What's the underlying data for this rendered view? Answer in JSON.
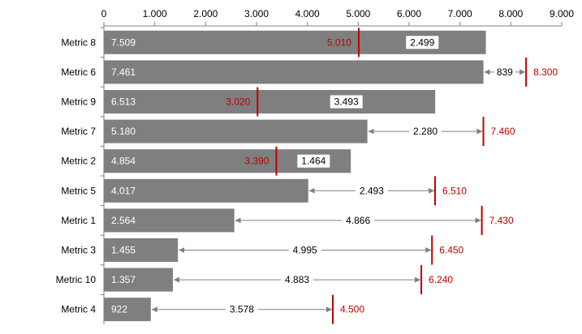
{
  "chart_data": {
    "type": "bar",
    "orientation": "horizontal",
    "categories": [
      "Metric 8",
      "Metric 6",
      "Metric 9",
      "Metric 7",
      "Metric 2",
      "Metric 5",
      "Metric 1",
      "Metric 3",
      "Metric 10",
      "Metric 4"
    ],
    "series": [
      {
        "values": [
          7509,
          7461,
          6513,
          5180,
          4854,
          4017,
          2564,
          1455,
          1357,
          922
        ],
        "labels": [
          "7.509",
          "7.461",
          "6.513",
          "5.180",
          "4.854",
          "4.017",
          "2.564",
          "1.455",
          "1.357",
          "922"
        ]
      },
      {
        "values": [
          5010,
          8300,
          3020,
          7460,
          3390,
          6510,
          7430,
          6450,
          6240,
          4500
        ],
        "labels": [
          "5.010",
          "8.300",
          "3.020",
          "7.460",
          "3.390",
          "6.510",
          "7.430",
          "6.450",
          "6.240",
          "4.500"
        ]
      }
    ],
    "differences": [
      "2.499",
      "839",
      "3.493",
      "2.280",
      "1.464",
      "2.493",
      "4.866",
      "4.995",
      "4.883",
      "3.578"
    ],
    "x_ticks": [
      0,
      1000,
      2000,
      3000,
      4000,
      5000,
      6000,
      7000,
      8000,
      9000
    ],
    "x_tick_labels": [
      "0",
      "1.000",
      "2.000",
      "3.000",
      "4.000",
      "5.000",
      "6.000",
      "7.000",
      "8.000",
      "9.000"
    ],
    "xlim": [
      0,
      9000
    ],
    "axis_position": "top",
    "grid": false,
    "title": "",
    "xlabel": "",
    "ylabel": "",
    "colors": {
      "bar": "#7f7f7f",
      "target": "#c00000",
      "arrow": "#808080",
      "axis": "#808080"
    }
  }
}
